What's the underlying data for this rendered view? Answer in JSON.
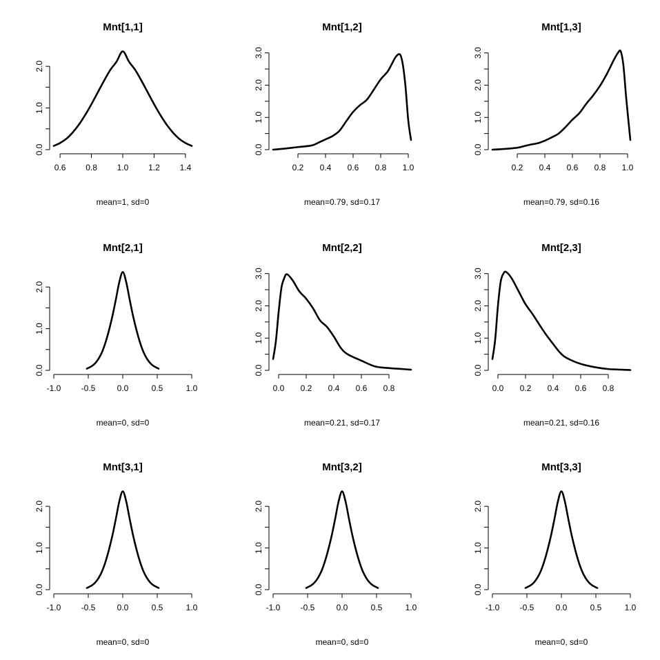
{
  "chart_data": [
    {
      "type": "line",
      "title": "Mnt[1,1]",
      "subtitle": "mean=1, sd=0",
      "xlim": [
        0.56,
        1.44
      ],
      "ylim": [
        0,
        2.4
      ],
      "xticks": [
        0.6,
        0.8,
        1.0,
        1.2,
        1.4
      ],
      "xtick_labels": [
        "0.6",
        "0.8",
        "1.0",
        "1.2",
        "1.4"
      ],
      "yticks": [
        0,
        0.5,
        1.0,
        1.5,
        2.0
      ],
      "ytick_labels": [
        "0.0",
        "",
        "1.0",
        "",
        "2.0"
      ],
      "x": [
        0.56,
        0.6,
        0.64,
        0.68,
        0.72,
        0.76,
        0.8,
        0.84,
        0.88,
        0.92,
        0.96,
        1.0,
        1.04,
        1.08,
        1.12,
        1.16,
        1.2,
        1.24,
        1.28,
        1.32,
        1.36,
        1.4,
        1.44
      ],
      "y": [
        0.09,
        0.16,
        0.26,
        0.41,
        0.6,
        0.83,
        1.09,
        1.37,
        1.65,
        1.91,
        2.11,
        2.36,
        2.11,
        1.91,
        1.65,
        1.37,
        1.09,
        0.83,
        0.6,
        0.41,
        0.26,
        0.16,
        0.09
      ]
    },
    {
      "type": "line",
      "title": "Mnt[1,2]",
      "subtitle": "mean=0.79, sd=0.17",
      "xlim": [
        0.02,
        1.02
      ],
      "ylim": [
        0,
        3.1
      ],
      "xticks": [
        0.2,
        0.4,
        0.6,
        0.8,
        1.0
      ],
      "xtick_labels": [
        "0.2",
        "0.4",
        "0.6",
        "0.8",
        "1.0"
      ],
      "yticks": [
        0,
        0.5,
        1.0,
        1.5,
        2.0,
        2.5,
        3.0
      ],
      "ytick_labels": [
        "0.0",
        "",
        "1.0",
        "",
        "2.0",
        "",
        "3.0"
      ],
      "x": [
        0.02,
        0.1,
        0.2,
        0.3,
        0.35,
        0.4,
        0.45,
        0.5,
        0.55,
        0.6,
        0.65,
        0.7,
        0.75,
        0.8,
        0.85,
        0.88,
        0.91,
        0.94,
        0.96,
        0.98,
        1.0,
        1.02
      ],
      "y": [
        0.0,
        0.03,
        0.08,
        0.13,
        0.22,
        0.32,
        0.42,
        0.58,
        0.88,
        1.17,
        1.38,
        1.55,
        1.86,
        2.18,
        2.42,
        2.65,
        2.88,
        2.95,
        2.65,
        1.95,
        0.9,
        0.3
      ]
    },
    {
      "type": "line",
      "title": "Mnt[1,3]",
      "subtitle": "mean=0.79, sd=0.16",
      "xlim": [
        0.02,
        1.02
      ],
      "ylim": [
        0,
        3.1
      ],
      "xticks": [
        0.2,
        0.4,
        0.6,
        0.8,
        1.0
      ],
      "xtick_labels": [
        "0.2",
        "0.4",
        "0.6",
        "0.8",
        "1.0"
      ],
      "yticks": [
        0,
        0.5,
        1.0,
        1.5,
        2.0,
        2.5,
        3.0
      ],
      "ytick_labels": [
        "0.0",
        "",
        "1.0",
        "",
        "2.0",
        "",
        "3.0"
      ],
      "x": [
        0.02,
        0.1,
        0.2,
        0.25,
        0.3,
        0.35,
        0.4,
        0.45,
        0.5,
        0.55,
        0.6,
        0.65,
        0.7,
        0.75,
        0.8,
        0.85,
        0.9,
        0.93,
        0.95,
        0.97,
        0.99,
        1.02
      ],
      "y": [
        0.0,
        0.02,
        0.06,
        0.11,
        0.16,
        0.2,
        0.28,
        0.38,
        0.5,
        0.7,
        0.93,
        1.13,
        1.42,
        1.68,
        1.98,
        2.35,
        2.78,
        3.0,
        3.05,
        2.6,
        1.6,
        0.3
      ]
    },
    {
      "type": "line",
      "title": "Mnt[2,1]",
      "subtitle": "mean=0, sd=0",
      "xlim": [
        -1.0,
        1.0
      ],
      "ylim": [
        0,
        2.4
      ],
      "xticks": [
        -1.0,
        -0.5,
        0.0,
        0.5,
        1.0
      ],
      "xtick_labels": [
        "-1.0",
        "-0.5",
        "0.0",
        "0.5",
        "1.0"
      ],
      "yticks": [
        0,
        0.5,
        1.0,
        1.5,
        2.0
      ],
      "ytick_labels": [
        "0.0",
        "",
        "1.0",
        "",
        "2.0"
      ],
      "x": [
        -0.52,
        -0.45,
        -0.4,
        -0.35,
        -0.3,
        -0.25,
        -0.2,
        -0.15,
        -0.1,
        -0.05,
        0.0,
        0.05,
        0.1,
        0.15,
        0.2,
        0.25,
        0.3,
        0.35,
        0.4,
        0.45,
        0.52
      ],
      "y": [
        0.04,
        0.1,
        0.17,
        0.28,
        0.44,
        0.67,
        0.96,
        1.3,
        1.7,
        2.12,
        2.36,
        2.12,
        1.7,
        1.3,
        0.96,
        0.67,
        0.44,
        0.28,
        0.17,
        0.1,
        0.04
      ]
    },
    {
      "type": "line",
      "title": "Mnt[2,2]",
      "subtitle": "mean=0.21, sd=0.17",
      "xlim": [
        -0.04,
        0.96
      ],
      "ylim": [
        0,
        3.1
      ],
      "xticks": [
        0.0,
        0.2,
        0.4,
        0.6,
        0.8
      ],
      "xtick_labels": [
        "0.0",
        "0.2",
        "0.4",
        "0.6",
        "0.8"
      ],
      "yticks": [
        0,
        0.5,
        1.0,
        1.5,
        2.0,
        2.5,
        3.0
      ],
      "ytick_labels": [
        "0.0",
        "",
        "1.0",
        "",
        "2.0",
        "",
        "3.0"
      ],
      "x": [
        -0.04,
        -0.02,
        0.0,
        0.02,
        0.04,
        0.06,
        0.1,
        0.15,
        0.2,
        0.25,
        0.3,
        0.35,
        0.4,
        0.45,
        0.5,
        0.6,
        0.7,
        0.8,
        0.9,
        0.96
      ],
      "y": [
        0.35,
        0.9,
        1.8,
        2.55,
        2.85,
        2.98,
        2.8,
        2.45,
        2.22,
        1.92,
        1.55,
        1.35,
        1.05,
        0.7,
        0.5,
        0.3,
        0.12,
        0.07,
        0.04,
        0.02
      ]
    },
    {
      "type": "line",
      "title": "Mnt[2,3]",
      "subtitle": "mean=0.21, sd=0.16",
      "xlim": [
        -0.04,
        0.96
      ],
      "ylim": [
        0,
        3.1
      ],
      "xticks": [
        0.0,
        0.2,
        0.4,
        0.6,
        0.8
      ],
      "xtick_labels": [
        "0.0",
        "0.2",
        "0.4",
        "0.6",
        "0.8"
      ],
      "yticks": [
        0,
        0.5,
        1.0,
        1.5,
        2.0,
        2.5,
        3.0
      ],
      "ytick_labels": [
        "0.0",
        "",
        "1.0",
        "",
        "2.0",
        "",
        "3.0"
      ],
      "x": [
        -0.04,
        -0.02,
        0.0,
        0.02,
        0.04,
        0.06,
        0.1,
        0.15,
        0.2,
        0.25,
        0.3,
        0.35,
        0.4,
        0.45,
        0.5,
        0.6,
        0.7,
        0.8,
        0.9,
        0.96
      ],
      "y": [
        0.35,
        0.95,
        2.0,
        2.75,
        3.0,
        3.05,
        2.85,
        2.45,
        2.05,
        1.75,
        1.42,
        1.1,
        0.82,
        0.55,
        0.38,
        0.2,
        0.1,
        0.04,
        0.02,
        0.01
      ]
    },
    {
      "type": "line",
      "title": "Mnt[3,1]",
      "subtitle": "mean=0, sd=0",
      "xlim": [
        -1.0,
        1.0
      ],
      "ylim": [
        0,
        2.4
      ],
      "xticks": [
        -1.0,
        -0.5,
        0.0,
        0.5,
        1.0
      ],
      "xtick_labels": [
        "-1.0",
        "-0.5",
        "0.0",
        "0.5",
        "1.0"
      ],
      "yticks": [
        0,
        0.5,
        1.0,
        1.5,
        2.0
      ],
      "ytick_labels": [
        "0.0",
        "",
        "1.0",
        "",
        "2.0"
      ],
      "x": [
        -0.52,
        -0.45,
        -0.4,
        -0.35,
        -0.3,
        -0.25,
        -0.2,
        -0.15,
        -0.1,
        -0.05,
        0.0,
        0.05,
        0.1,
        0.15,
        0.2,
        0.25,
        0.3,
        0.35,
        0.4,
        0.45,
        0.52
      ],
      "y": [
        0.04,
        0.1,
        0.17,
        0.28,
        0.44,
        0.67,
        0.96,
        1.3,
        1.7,
        2.12,
        2.36,
        2.12,
        1.7,
        1.3,
        0.96,
        0.67,
        0.44,
        0.28,
        0.17,
        0.1,
        0.04
      ]
    },
    {
      "type": "line",
      "title": "Mnt[3,2]",
      "subtitle": "mean=0, sd=0",
      "xlim": [
        -1.0,
        1.0
      ],
      "ylim": [
        0,
        2.4
      ],
      "xticks": [
        -1.0,
        -0.5,
        0.0,
        0.5,
        1.0
      ],
      "xtick_labels": [
        "-1.0",
        "-0.5",
        "0.0",
        "0.5",
        "1.0"
      ],
      "yticks": [
        0,
        0.5,
        1.0,
        1.5,
        2.0
      ],
      "ytick_labels": [
        "0.0",
        "",
        "1.0",
        "",
        "2.0"
      ],
      "x": [
        -0.52,
        -0.45,
        -0.4,
        -0.35,
        -0.3,
        -0.25,
        -0.2,
        -0.15,
        -0.1,
        -0.05,
        0.0,
        0.05,
        0.1,
        0.15,
        0.2,
        0.25,
        0.3,
        0.35,
        0.4,
        0.45,
        0.52
      ],
      "y": [
        0.04,
        0.1,
        0.17,
        0.28,
        0.44,
        0.67,
        0.96,
        1.3,
        1.7,
        2.12,
        2.36,
        2.12,
        1.7,
        1.3,
        0.96,
        0.67,
        0.44,
        0.28,
        0.17,
        0.1,
        0.04
      ]
    },
    {
      "type": "line",
      "title": "Mnt[3,3]",
      "subtitle": "mean=0, sd=0",
      "xlim": [
        -1.0,
        1.0
      ],
      "ylim": [
        0,
        2.4
      ],
      "xticks": [
        -1.0,
        -0.5,
        0.0,
        0.5,
        1.0
      ],
      "xtick_labels": [
        "-1.0",
        "-0.5",
        "0.0",
        "0.5",
        "1.0"
      ],
      "yticks": [
        0,
        0.5,
        1.0,
        1.5,
        2.0
      ],
      "ytick_labels": [
        "0.0",
        "",
        "1.0",
        "",
        "2.0"
      ],
      "x": [
        -0.52,
        -0.45,
        -0.4,
        -0.35,
        -0.3,
        -0.25,
        -0.2,
        -0.15,
        -0.1,
        -0.05,
        0.0,
        0.05,
        0.1,
        0.15,
        0.2,
        0.25,
        0.3,
        0.35,
        0.4,
        0.45,
        0.52
      ],
      "y": [
        0.04,
        0.1,
        0.17,
        0.28,
        0.44,
        0.67,
        0.96,
        1.3,
        1.7,
        2.12,
        2.36,
        2.12,
        1.7,
        1.3,
        0.96,
        0.67,
        0.44,
        0.28,
        0.17,
        0.1,
        0.04
      ]
    }
  ]
}
